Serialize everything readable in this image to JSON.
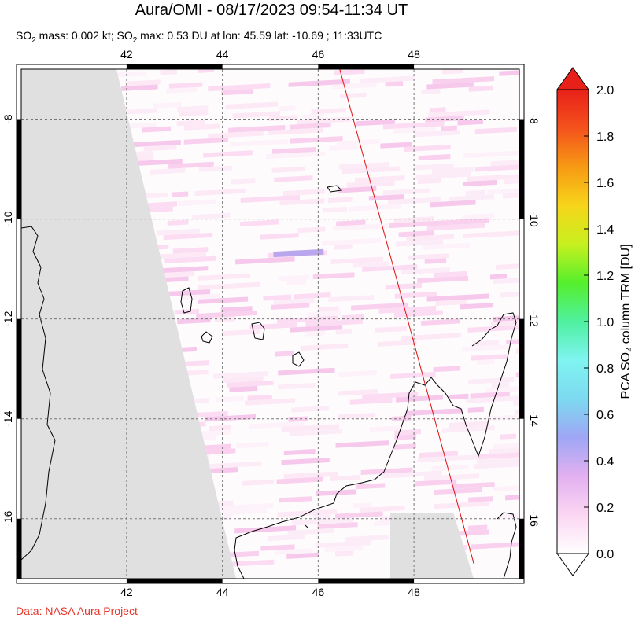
{
  "title": "Aura/OMI - 08/17/2023 09:54-11:34 UT",
  "subtitle": {
    "part1": "SO",
    "sub1": "2",
    "part2": " mass: 0.002 kt; SO",
    "sub2": "2",
    "part3": " max: 0.53 DU at lon: 45.59 lat: -10.69 ; 11:33UTC"
  },
  "credit": "Data: NASA Aura Project",
  "chart_data": {
    "type": "heatmap",
    "title": "Aura/OMI - 08/17/2023 09:54-11:34 UT",
    "xlim": [
      39.8,
      50.2
    ],
    "ylim": [
      -17.2,
      -7.0
    ],
    "x_ticks": [
      42,
      44,
      46,
      48
    ],
    "y_ticks": [
      -8,
      -10,
      -12,
      -14,
      -16
    ],
    "x_tick_labels": [
      "42",
      "44",
      "46",
      "48"
    ],
    "y_tick_labels": [
      "-8",
      "-10",
      "-12",
      "-14",
      "-16"
    ],
    "grid": true,
    "colorbar": {
      "label": "PCA SO₂ column TRM [DU]",
      "min": 0.0,
      "max": 2.0,
      "ticks": [
        "0.0",
        "0.2",
        "0.4",
        "0.6",
        "0.8",
        "1.0",
        "1.2",
        "1.4",
        "1.6",
        "1.8",
        "2.0"
      ],
      "colors": [
        "#ffffff",
        "#fbd6f2",
        "#e2b0f0",
        "#9fa6f5",
        "#7dd9f0",
        "#7ff4f1",
        "#4ff0a0",
        "#55ef2c",
        "#c7f01f",
        "#f7d51a",
        "#f79a14",
        "#f4521c",
        "#e8201a"
      ]
    },
    "track_line": {
      "color": "#e01010",
      "points": [
        [
          46.45,
          -7.0
        ],
        [
          49.25,
          -16.9
        ]
      ]
    },
    "max_value_du": 0.53,
    "max_location": {
      "lon": 45.59,
      "lat": -10.69
    },
    "no_data_color": "#e0e0e0"
  }
}
